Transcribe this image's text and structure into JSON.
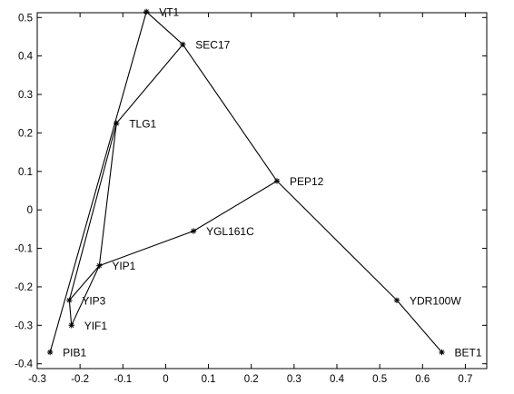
{
  "chart_data": {
    "type": "scatter",
    "title": "",
    "xlabel": "",
    "ylabel": "",
    "xlim": [
      -0.3,
      0.75
    ],
    "ylim": [
      -0.4125,
      0.5125
    ],
    "x_ticks": [
      "-0.3",
      "-0.2",
      "-0.1",
      "0",
      "0.1",
      "0.2",
      "0.3",
      "0.4",
      "0.5",
      "0.6",
      "0.7"
    ],
    "x_tick_values": [
      -0.3,
      -0.2,
      -0.1,
      0,
      0.1,
      0.2,
      0.3,
      0.4,
      0.5,
      0.6,
      0.7
    ],
    "y_ticks": [
      "-0.4",
      "-0.3",
      "-0.2",
      "-0.1",
      "0",
      "0.1",
      "0.2",
      "0.3",
      "0.4",
      "0.5"
    ],
    "y_tick_values": [
      -0.4,
      -0.3,
      -0.2,
      -0.1,
      0,
      0.1,
      0.2,
      0.3,
      0.4,
      0.5
    ],
    "grid": false,
    "marker": "*",
    "points": [
      {
        "label": "VT1",
        "x": -0.045,
        "y": 0.515
      },
      {
        "label": "SEC17",
        "x": 0.04,
        "y": 0.43
      },
      {
        "label": "TLG1",
        "x": -0.115,
        "y": 0.225
      },
      {
        "label": "PEP12",
        "x": 0.26,
        "y": 0.075
      },
      {
        "label": "YGL161C",
        "x": 0.065,
        "y": -0.055
      },
      {
        "label": "YIP1",
        "x": -0.155,
        "y": -0.145
      },
      {
        "label": "YIP3",
        "x": -0.225,
        "y": -0.235
      },
      {
        "label": "YIF1",
        "x": -0.22,
        "y": -0.3
      },
      {
        "label": "PIB1",
        "x": -0.27,
        "y": -0.37
      },
      {
        "label": "YDR100W",
        "x": 0.54,
        "y": -0.235
      },
      {
        "label": "BET1",
        "x": 0.645,
        "y": -0.37
      }
    ],
    "edges": [
      [
        "PIB1",
        "VT1"
      ],
      [
        "VT1",
        "SEC17"
      ],
      [
        "SEC17",
        "TLG1"
      ],
      [
        "TLG1",
        "YIP3"
      ],
      [
        "TLG1",
        "YIP1"
      ],
      [
        "YIP1",
        "YIP3"
      ],
      [
        "YIP1",
        "YIF1"
      ],
      [
        "YIP1",
        "YGL161C"
      ],
      [
        "YIP3",
        "YIF1"
      ],
      [
        "YGL161C",
        "PEP12"
      ],
      [
        "SEC17",
        "PEP12"
      ],
      [
        "PEP12",
        "YDR100W"
      ],
      [
        "YDR100W",
        "BET1"
      ]
    ]
  }
}
